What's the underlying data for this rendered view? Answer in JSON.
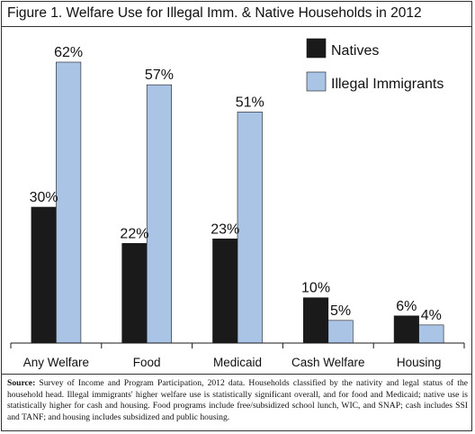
{
  "chart_data": {
    "type": "bar",
    "title": "Figure 1. Welfare Use for Illegal Imm. & Native Households in 2012",
    "xlabel": "",
    "ylabel": "",
    "ylim": [
      0,
      70
    ],
    "grid": false,
    "legend_position": "top-right",
    "categories": [
      "Any Welfare",
      "Food",
      "Medicaid",
      "Cash Welfare",
      "Housing"
    ],
    "series": [
      {
        "name": "Natives",
        "color": "#1a1a1a",
        "values": [
          30,
          22,
          23,
          10,
          6
        ],
        "labels": [
          "30%",
          "22%",
          "23%",
          "10%",
          "6%"
        ]
      },
      {
        "name": "Illegal Immigrants",
        "color": "#aac4e6",
        "values": [
          62,
          57,
          51,
          5,
          4
        ],
        "labels": [
          "62%",
          "57%",
          "51%",
          "5%",
          "4%"
        ]
      }
    ]
  },
  "source": {
    "label": "Source:",
    "text": "Survey of Income and Program Participation, 2012 data. Households classified by the nativity and legal status of the household head. Illegal immigrants' higher welfare use is statistically significant overall, and for food and Medicaid; native use is statistically higher for cash and housing. Food programs include free/subsidized school lunch, WIC, and SNAP; cash includes SSI and TANF; and housing includes subsidized and public housing."
  }
}
